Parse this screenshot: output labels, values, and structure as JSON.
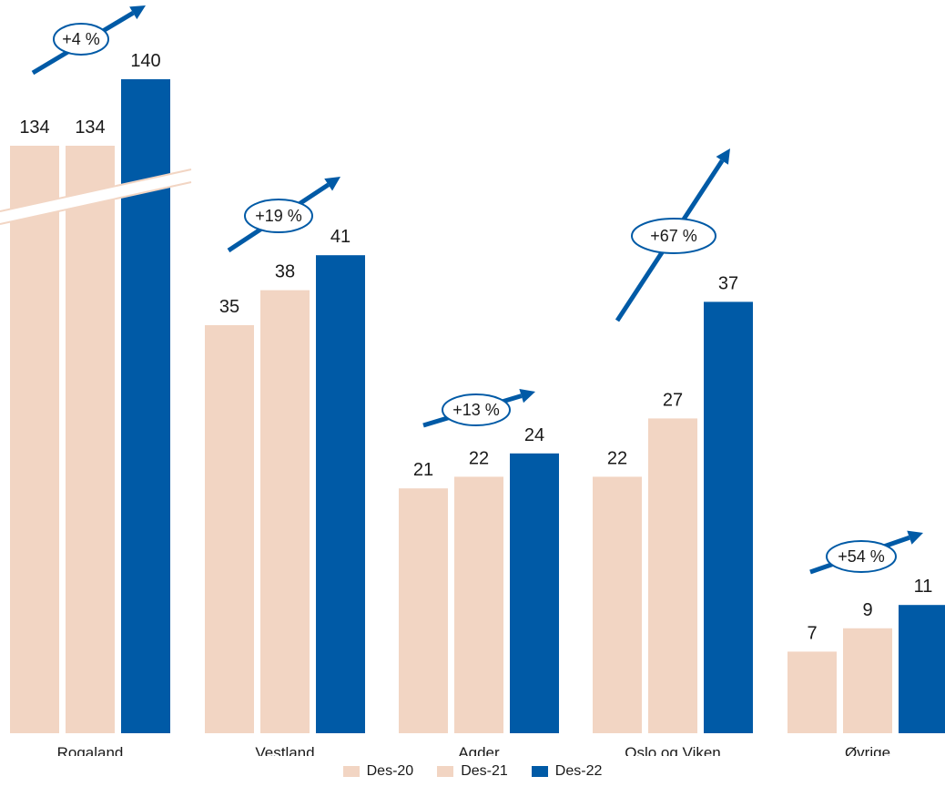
{
  "chart_data": {
    "type": "bar",
    "categories": [
      "Rogaland",
      "Vestland",
      "Agder",
      "Oslo og Viken",
      "Øvrige"
    ],
    "series": [
      {
        "name": "Des-20",
        "color": "#f2d5c3",
        "values": [
          134,
          35,
          21,
          22,
          7
        ]
      },
      {
        "name": "Des-21",
        "color": "#f2d5c3",
        "values": [
          134,
          38,
          22,
          27,
          9
        ]
      },
      {
        "name": "Des-22",
        "color": "#005aa6",
        "values": [
          140,
          41,
          24,
          37,
          11
        ]
      }
    ],
    "annotations": [
      "+4 %",
      "+19 %",
      "+13 %",
      "+67 %",
      "+54 %"
    ],
    "axis_break": {
      "category": "Rogaland",
      "note": "broken value axis"
    },
    "ylim": [
      0,
      44
    ],
    "legend_position": "bottom-center",
    "grid": false,
    "title": "",
    "xlabel": "",
    "ylabel": ""
  }
}
